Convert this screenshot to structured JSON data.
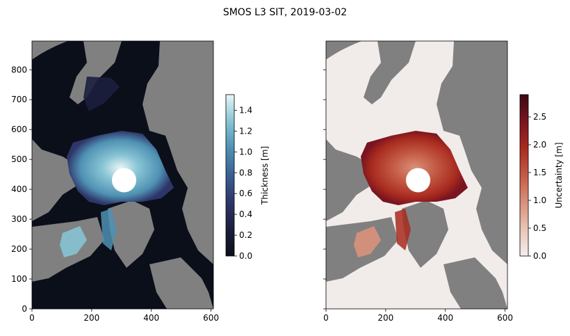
{
  "title": "SMOS L3 SIT, 2019-03-02",
  "chart_data": [
    {
      "type": "heatmap",
      "panel": "left",
      "variable": "Thickness",
      "xlim": [
        0,
        608
      ],
      "ylim": [
        0,
        896
      ],
      "x_ticks": [
        0,
        200,
        400,
        600
      ],
      "y_ticks": [
        0,
        100,
        200,
        300,
        400,
        500,
        600,
        700,
        800
      ],
      "y_tick_labels_shown": true,
      "pole_hole_center": [
        304,
        428
      ],
      "pole_hole_radius": 40,
      "land_color": "#808080",
      "colormap": [
        "#0b0f1a",
        "#1c1f3e",
        "#2e3569",
        "#3b5f95",
        "#4f91b3",
        "#86c3d3",
        "#e8f6f6"
      ],
      "colorbar": {
        "label": "Thickness [m]",
        "min": 0.0,
        "max": 1.55,
        "ticks": [
          0.0,
          0.2,
          0.4,
          0.6,
          0.8,
          1.0,
          1.2,
          1.4
        ],
        "tick_labels": [
          "0.0",
          "0.2",
          "0.4",
          "0.6",
          "0.8",
          "1.0",
          "1.2",
          "1.4"
        ]
      }
    },
    {
      "type": "heatmap",
      "panel": "right",
      "variable": "Uncertainty",
      "xlim": [
        0,
        608
      ],
      "ylim": [
        0,
        896
      ],
      "x_ticks": [
        0,
        200,
        400,
        600
      ],
      "y_ticks": [
        0,
        100,
        200,
        300,
        400,
        500,
        600,
        700,
        800
      ],
      "y_tick_labels_shown": false,
      "pole_hole_center": [
        304,
        428
      ],
      "pole_hole_radius": 40,
      "land_color": "#808080",
      "colormap": [
        "#f5efee",
        "#e8c4b6",
        "#d9917a",
        "#c45b45",
        "#a82a1f",
        "#7a1420",
        "#3d0914"
      ],
      "colorbar": {
        "label": "Uncertainty [m]",
        "min": 0.0,
        "max": 2.9,
        "ticks": [
          0.0,
          0.5,
          1.0,
          1.5,
          2.0,
          2.5
        ],
        "tick_labels": [
          "0.0",
          "0.5",
          "1.0",
          "1.5",
          "2.0",
          "2.5"
        ]
      }
    }
  ]
}
